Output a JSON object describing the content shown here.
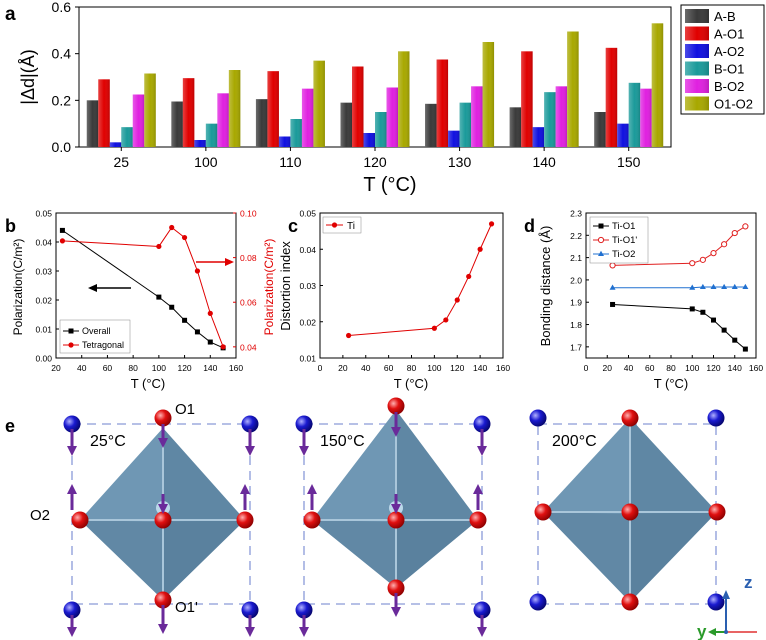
{
  "panels": {
    "a": {
      "letter": "a",
      "title": "",
      "ylabel": "|Δd|(Å)",
      "xlabel": "T (°C)",
      "ylim": [
        0,
        0.6
      ],
      "yticks": [
        "0.0",
        "0.2",
        "0.4",
        "0.6"
      ],
      "categories": [
        "25",
        "100",
        "110",
        "120",
        "130",
        "140",
        "150"
      ],
      "legend": [
        {
          "name": "A-B",
          "color": "#3a3a3a"
        },
        {
          "name": "A-O1",
          "color": "#e00000"
        },
        {
          "name": "A-O2",
          "color": "#1010e0"
        },
        {
          "name": "B-O1",
          "color": "#1a9a9a"
        },
        {
          "name": "B-O2",
          "color": "#e020e0"
        },
        {
          "name": "O1-O2",
          "color": "#a8a800"
        }
      ]
    },
    "b": {
      "letter": "b",
      "ylabel_left": "Polarization(C/m²)",
      "ylabel_right": "Polarization(C/m²)",
      "xlabel": "T (°C)",
      "left_ticks": [
        "0.00",
        "0.01",
        "0.02",
        "0.03",
        "0.04",
        "0.05"
      ],
      "right_ticks": [
        "0.04",
        "0.06",
        "0.08",
        "0.10"
      ],
      "x_ticks": [
        "20",
        "40",
        "60",
        "80",
        "100",
        "120",
        "140",
        "160"
      ],
      "legend": [
        "Overall",
        "Tetragonal"
      ],
      "colors": {
        "overall": "#000000",
        "tetragonal": "#e00000"
      }
    },
    "c": {
      "letter": "c",
      "ylabel": "Distortion index",
      "xlabel": "T (°C)",
      "y_ticks": [
        "0.01",
        "0.02",
        "0.03",
        "0.04",
        "0.05"
      ],
      "x_ticks": [
        "0",
        "20",
        "40",
        "60",
        "80",
        "100",
        "120",
        "140",
        "160"
      ],
      "legend": [
        "Ti"
      ],
      "color": "#e00000"
    },
    "d": {
      "letter": "d",
      "ylabel": "Bonding distance (Å)",
      "xlabel": "T (°C)",
      "y_ticks": [
        "1.7",
        "1.8",
        "1.9",
        "2.0",
        "2.1",
        "2.2",
        "2.3"
      ],
      "x_ticks": [
        "0",
        "20",
        "40",
        "60",
        "80",
        "100",
        "120",
        "140",
        "160"
      ],
      "legend": [
        "Ti-O1",
        "Ti-O1'",
        "Ti-O2"
      ],
      "colors": {
        "ti_o1": "#000000",
        "ti_o1p": "#e02020",
        "ti_o2": "#2070d0"
      }
    },
    "e": {
      "letter": "e",
      "temps": [
        "25°C",
        "150°C",
        "200°C"
      ],
      "labels": {
        "o1": "O1",
        "o2": "O2",
        "o1p": "O1'"
      },
      "axes": {
        "z": "z",
        "y": "y"
      },
      "colors": {
        "octahedron": "#6f97b4",
        "oxygen": "#e01010",
        "a_atom": "#1a1ad0",
        "arrow": "#6a2a9a",
        "frame": "#8a9ad8"
      }
    }
  },
  "chart_data": [
    {
      "type": "bar",
      "title": "",
      "xlabel": "T (°C)",
      "ylabel": "|Δd|(Å)",
      "ylim": [
        0,
        0.6
      ],
      "categories": [
        "25",
        "100",
        "110",
        "120",
        "130",
        "140",
        "150"
      ],
      "series": [
        {
          "name": "A-B",
          "values": [
            0.2,
            0.195,
            0.205,
            0.19,
            0.185,
            0.17,
            0.15
          ]
        },
        {
          "name": "A-O1",
          "values": [
            0.29,
            0.295,
            0.325,
            0.345,
            0.375,
            0.41,
            0.425
          ]
        },
        {
          "name": "A-O2",
          "values": [
            0.02,
            0.03,
            0.045,
            0.06,
            0.07,
            0.085,
            0.1
          ]
        },
        {
          "name": "B-O1",
          "values": [
            0.085,
            0.1,
            0.12,
            0.15,
            0.19,
            0.235,
            0.275
          ]
        },
        {
          "name": "B-O2",
          "values": [
            0.225,
            0.23,
            0.25,
            0.255,
            0.26,
            0.26,
            0.25
          ]
        },
        {
          "name": "O1-O2",
          "values": [
            0.315,
            0.33,
            0.37,
            0.41,
            0.45,
            0.495,
            0.53
          ]
        }
      ]
    },
    {
      "type": "line",
      "title": "",
      "xlabel": "T (°C)",
      "ylabel": "Polarization(C/m²)",
      "xlim": [
        20,
        160
      ],
      "ylim": [
        0,
        0.05
      ],
      "y2lim": [
        0.035,
        0.1
      ],
      "series": [
        {
          "name": "Overall",
          "axis": "left",
          "x": [
            25,
            100,
            110,
            120,
            130,
            140,
            150
          ],
          "y": [
            0.044,
            0.021,
            0.0175,
            0.013,
            0.009,
            0.0055,
            0.0035
          ]
        },
        {
          "name": "Tetragonal",
          "axis": "right",
          "x": [
            25,
            100,
            110,
            120,
            130,
            140,
            150
          ],
          "y": [
            0.0875,
            0.085,
            0.0935,
            0.089,
            0.074,
            0.055,
            0.04
          ]
        }
      ]
    },
    {
      "type": "line",
      "title": "",
      "xlabel": "T (°C)",
      "ylabel": "Distortion index",
      "xlim": [
        0,
        160
      ],
      "ylim": [
        0.01,
        0.05
      ],
      "series": [
        {
          "name": "Ti",
          "x": [
            25,
            100,
            110,
            120,
            130,
            140,
            150
          ],
          "y": [
            0.0162,
            0.0182,
            0.0205,
            0.026,
            0.0325,
            0.04,
            0.047
          ]
        }
      ]
    },
    {
      "type": "line",
      "title": "",
      "xlabel": "T (°C)",
      "ylabel": "Bonding distance (Å)",
      "xlim": [
        0,
        160
      ],
      "ylim": [
        1.65,
        2.3
      ],
      "series": [
        {
          "name": "Ti-O1",
          "x": [
            25,
            100,
            110,
            120,
            130,
            140,
            150
          ],
          "y": [
            1.89,
            1.87,
            1.855,
            1.82,
            1.775,
            1.73,
            1.69
          ]
        },
        {
          "name": "Ti-O1'",
          "x": [
            25,
            100,
            110,
            120,
            130,
            140,
            150
          ],
          "y": [
            2.065,
            2.075,
            2.09,
            2.12,
            2.16,
            2.21,
            2.24
          ]
        },
        {
          "name": "Ti-O2",
          "x": [
            25,
            100,
            110,
            120,
            130,
            140,
            150
          ],
          "y": [
            1.965,
            1.965,
            1.968,
            1.968,
            1.968,
            1.968,
            1.968
          ]
        }
      ]
    }
  ]
}
